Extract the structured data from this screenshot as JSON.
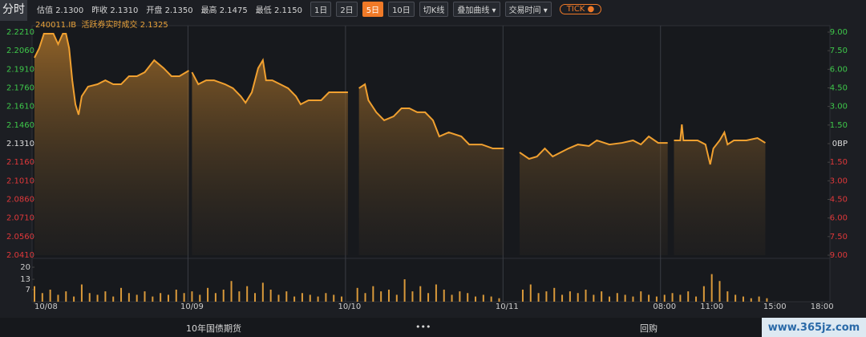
{
  "toolbar": {
    "tab": "分时",
    "stats": [
      {
        "label": "估值",
        "value": "2.1300"
      },
      {
        "label": "昨收",
        "value": "2.1310"
      },
      {
        "label": "开盘",
        "value": "2.1350"
      },
      {
        "label": "最高",
        "value": "2.1475"
      },
      {
        "label": "最低",
        "value": "2.1150"
      }
    ],
    "periods": [
      "1日",
      "2日",
      "5日",
      "10日"
    ],
    "active_period": 2,
    "kline": "切K线",
    "dropdowns": [
      "叠加曲线",
      "交易时间"
    ],
    "tick_button": "TICK"
  },
  "subheader": {
    "code": "240011.IB",
    "label": "活跃券实时成交",
    "value": "2.1325"
  },
  "footer": {
    "tabs": [
      "10年国债期货",
      "•••",
      "回购"
    ]
  },
  "watermark": "www.365jz.com",
  "chart_data": {
    "type": "line",
    "color": "#f0a030",
    "grid": false,
    "xlim": [
      0,
      50.5
    ],
    "xticks": [
      {
        "value": 0,
        "label": "10/08"
      },
      {
        "value": 10,
        "label": "10/09"
      },
      {
        "value": 20,
        "label": "10/10"
      },
      {
        "value": 30,
        "label": "10/11"
      },
      {
        "value": 40,
        "label": "08:00"
      },
      {
        "value": 43,
        "label": "11:00"
      },
      {
        "value": 47,
        "label": "15:00"
      },
      {
        "value": 50,
        "label": "18:00"
      }
    ],
    "ylim": [
      2.041,
      2.221
    ],
    "yticks": [
      {
        "value": 2.221,
        "label": "2.2210"
      },
      {
        "value": 2.206,
        "label": "2.2060"
      },
      {
        "value": 2.191,
        "label": "2.1910"
      },
      {
        "value": 2.176,
        "label": "2.1760"
      },
      {
        "value": 2.161,
        "label": "2.1610"
      },
      {
        "value": 2.146,
        "label": "2.1460"
      },
      {
        "value": 2.131,
        "label": "2.1310"
      },
      {
        "value": 2.116,
        "label": "2.1160"
      },
      {
        "value": 2.101,
        "label": "2.1010"
      },
      {
        "value": 2.086,
        "label": "2.0860"
      },
      {
        "value": 2.071,
        "label": "2.0710"
      },
      {
        "value": 2.056,
        "label": "2.0560"
      },
      {
        "value": 2.041,
        "label": "2.0410"
      }
    ],
    "y2lim": [
      -9,
      9
    ],
    "y2ticks": [
      {
        "value": 9,
        "label": "9.00"
      },
      {
        "value": 7.5,
        "label": "7.50"
      },
      {
        "value": 6,
        "label": "6.00"
      },
      {
        "value": 4.5,
        "label": "4.50"
      },
      {
        "value": 3,
        "label": "3.00"
      },
      {
        "value": 1.5,
        "label": "1.50"
      },
      {
        "value": 0,
        "label": "0BP"
      },
      {
        "value": -1.5,
        "label": "1.50"
      },
      {
        "value": -3,
        "label": "3.00"
      },
      {
        "value": -4.5,
        "label": "4.50"
      },
      {
        "value": -6,
        "label": "6.00"
      },
      {
        "value": -7.5,
        "label": "7.50"
      },
      {
        "value": -9,
        "label": "9.00"
      }
    ],
    "x": [
      0,
      0.3,
      0.6,
      1.2,
      1.5,
      1.8,
      2.0,
      2.2,
      2.4,
      2.6,
      2.8,
      3.0,
      3.4,
      4.0,
      4.5,
      5.0,
      5.5,
      6.0,
      6.5,
      7.0,
      7.6,
      8.2,
      8.7,
      9.2,
      9.8,
      9.9,
      10.0,
      10.4,
      10.9,
      11.4,
      12.1,
      12.6,
      13.1,
      13.4,
      13.8,
      14.2,
      14.5,
      14.7,
      15.1,
      15.6,
      16.1,
      16.6,
      16.9,
      17.4,
      18.2,
      18.7,
      19.9,
      20.2,
      20.6,
      20.98,
      21.2,
      21.7,
      22.2,
      22.8,
      23.3,
      23.8,
      24.3,
      24.8,
      25.3,
      25.7,
      26.3,
      27.1,
      27.6,
      28.4,
      29.1,
      29.8,
      30.3,
      30.8,
      31.4,
      31.9,
      32.4,
      32.9,
      33.4,
      33.9,
      34.5,
      35.2,
      35.7,
      36.5,
      37.3,
      38.0,
      38.5,
      39.0,
      39.6,
      40.2,
      40.4,
      40.6,
      41.0,
      41.1,
      41.2,
      42.1,
      42.6,
      42.9,
      43.1,
      43.5,
      43.8,
      44.0,
      44.4,
      45.2,
      45.9,
      46.4
    ],
    "series": [
      {
        "name": "240011.IB",
        "values": [
          2.2003,
          2.208,
          2.2197,
          2.2197,
          2.2113,
          2.2197,
          2.2197,
          2.208,
          2.1821,
          2.1627,
          2.1543,
          2.1692,
          2.177,
          2.1789,
          2.1821,
          2.1789,
          2.1789,
          2.1854,
          2.1854,
          2.1886,
          2.1983,
          2.1919,
          2.1854,
          2.1854,
          2.1899,
          null,
          2.1886,
          2.1789,
          2.1821,
          2.1821,
          2.1789,
          2.1757,
          2.1692,
          2.164,
          2.1724,
          2.1919,
          2.1983,
          2.1821,
          2.1821,
          2.1789,
          2.1757,
          2.1692,
          2.1627,
          2.166,
          2.166,
          2.1724,
          2.1724,
          null,
          2.1757,
          2.1789,
          2.166,
          2.1563,
          2.1498,
          2.153,
          2.1595,
          2.1595,
          2.1563,
          2.1563,
          2.1498,
          2.1368,
          2.1401,
          2.1368,
          2.1303,
          2.1303,
          2.1271,
          2.1271,
          null,
          2.1239,
          2.1187,
          2.1206,
          2.1271,
          2.1206,
          2.1239,
          2.1271,
          2.1303,
          2.1291,
          2.1336,
          2.1303,
          2.1316,
          2.1336,
          2.1303,
          2.1368,
          2.1316,
          2.1316,
          null,
          2.1336,
          2.1336,
          2.1465,
          2.1336,
          2.1336,
          2.1303,
          2.1142,
          2.1271,
          2.1336,
          2.1401,
          2.1303,
          2.1336,
          2.1336,
          2.1355,
          2.1316
        ]
      }
    ],
    "volume": {
      "color": "#d9993a",
      "ylim": [
        0,
        27
      ],
      "yticks": [
        20,
        13,
        7
      ],
      "x": [
        0,
        0.5,
        1,
        1.5,
        2,
        2.5,
        3,
        3.5,
        4,
        4.5,
        5,
        5.5,
        6,
        6.5,
        7,
        7.5,
        8,
        8.5,
        9,
        9.5,
        10,
        10.5,
        11,
        11.5,
        12,
        12.5,
        13,
        13.5,
        14,
        14.5,
        15,
        15.5,
        16,
        16.5,
        17,
        17.5,
        18,
        18.5,
        19,
        19.5,
        20.5,
        21,
        21.5,
        22,
        22.5,
        23,
        23.5,
        24,
        24.5,
        25,
        25.5,
        26,
        26.5,
        27,
        27.5,
        28,
        28.5,
        29,
        29.5,
        31,
        31.5,
        32,
        32.5,
        33,
        33.5,
        34,
        34.5,
        35,
        35.5,
        36,
        36.5,
        37,
        37.5,
        38,
        38.5,
        39,
        39.5,
        40,
        40.5,
        41,
        41.5,
        42,
        42.5,
        43,
        43.5,
        44,
        44.5,
        45,
        45.5,
        46,
        46.5
      ],
      "values": [
        9,
        5,
        7,
        4,
        6,
        3,
        10,
        5,
        4,
        6,
        3,
        8,
        5,
        4,
        6,
        3,
        5,
        4,
        7,
        5,
        6,
        4,
        8,
        5,
        7,
        12,
        6,
        9,
        5,
        11,
        7,
        4,
        6,
        3,
        5,
        4,
        3,
        5,
        4,
        3,
        8,
        5,
        9,
        6,
        7,
        4,
        13,
        6,
        9,
        5,
        10,
        7,
        4,
        6,
        5,
        3,
        4,
        3,
        2,
        7,
        10,
        5,
        6,
        8,
        4,
        6,
        5,
        7,
        4,
        6,
        3,
        5,
        4,
        3,
        6,
        4,
        3,
        4,
        5,
        4,
        6,
        3,
        9,
        16,
        12,
        6,
        4,
        3,
        2,
        3,
        2
      ]
    }
  }
}
